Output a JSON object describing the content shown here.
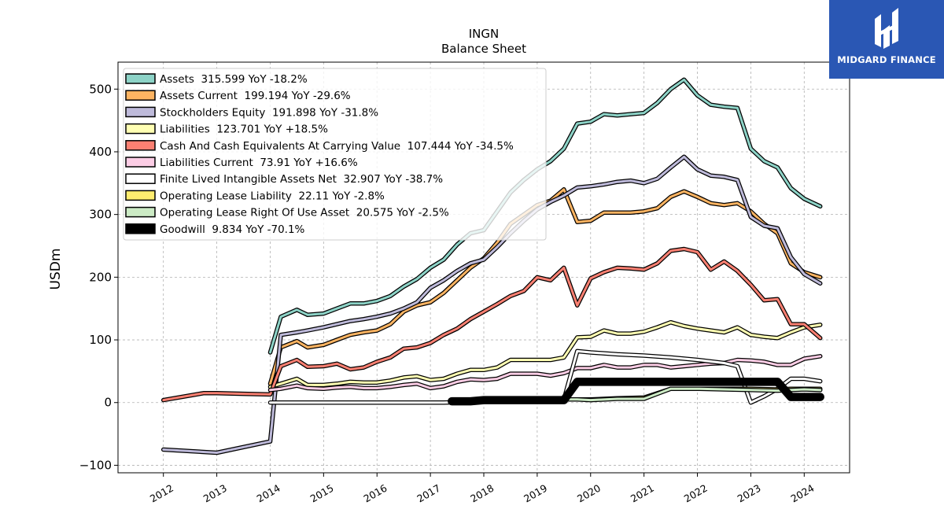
{
  "brand": {
    "name": "MIDGARD FINANCE",
    "color": "#2a57b4"
  },
  "chart_data": {
    "type": "line",
    "title": "INGN",
    "subtitle": "Balance  Sheet",
    "ylabel": "USDm",
    "xlabel": "",
    "ylim": [
      -112,
      543
    ],
    "xlim": [
      2011.15,
      2024.85
    ],
    "yticks": [
      -100,
      0,
      100,
      200,
      300,
      400,
      500
    ],
    "xticks": [
      2012,
      2013,
      2014,
      2015,
      2016,
      2017,
      2018,
      2019,
      2020,
      2021,
      2022,
      2023,
      2024
    ],
    "grid": true,
    "legend_position": "top-left",
    "series": [
      {
        "name": "Assets",
        "legend": "Assets  315.599 YoY -18.2%",
        "color": "#8dd3c7",
        "width": 3,
        "x": [
          2014.0,
          2014.2,
          2014.5,
          2014.7,
          2015.0,
          2015.25,
          2015.5,
          2015.75,
          2016.0,
          2016.25,
          2016.5,
          2016.75,
          2017.0,
          2017.25,
          2017.5,
          2017.75,
          2018.0,
          2018.25,
          2018.5,
          2018.75,
          2019.0,
          2019.25,
          2019.5,
          2019.75,
          2020.0,
          2020.25,
          2020.5,
          2020.75,
          2021.0,
          2021.25,
          2021.5,
          2021.75,
          2022.0,
          2022.25,
          2022.5,
          2022.75,
          2023.0,
          2023.25,
          2023.5,
          2023.75,
          2024.0,
          2024.3
        ],
        "y": [
          80,
          137,
          148,
          140,
          142,
          150,
          158,
          158,
          162,
          170,
          185,
          197,
          215,
          228,
          252,
          270,
          275,
          305,
          335,
          355,
          372,
          385,
          405,
          445,
          448,
          460,
          458,
          460,
          462,
          478,
          500,
          515,
          490,
          475,
          472,
          470,
          405,
          385,
          375,
          342,
          325,
          313
        ]
      },
      {
        "name": "Assets Current",
        "legend": "Assets Current  199.194 YoY -29.6%",
        "color": "#fdb462",
        "width": 3,
        "x": [
          2014.0,
          2014.2,
          2014.5,
          2014.7,
          2015.0,
          2015.25,
          2015.5,
          2015.75,
          2016.0,
          2016.25,
          2016.5,
          2016.75,
          2017.0,
          2017.25,
          2017.5,
          2017.75,
          2018.0,
          2018.25,
          2018.5,
          2018.75,
          2019.0,
          2019.25,
          2019.5,
          2019.75,
          2020.0,
          2020.25,
          2020.5,
          2020.75,
          2021.0,
          2021.25,
          2021.5,
          2021.75,
          2022.0,
          2022.25,
          2022.5,
          2022.75,
          2023.0,
          2023.25,
          2023.5,
          2023.75,
          2024.0,
          2024.3
        ],
        "y": [
          30,
          88,
          98,
          88,
          92,
          100,
          108,
          112,
          115,
          125,
          145,
          155,
          160,
          175,
          195,
          215,
          230,
          255,
          285,
          300,
          315,
          322,
          340,
          288,
          290,
          303,
          303,
          303,
          305,
          310,
          328,
          337,
          328,
          318,
          315,
          318,
          305,
          285,
          270,
          222,
          208,
          200
        ]
      },
      {
        "name": "Stockholders Equity",
        "legend": "Stockholders Equity  191.898 YoY -31.8%",
        "color": "#bebada",
        "width": 3,
        "x": [
          2012.0,
          2013.0,
          2014.0,
          2014.2,
          2014.5,
          2014.7,
          2015.0,
          2015.25,
          2015.5,
          2015.75,
          2016.0,
          2016.25,
          2016.5,
          2016.75,
          2017.0,
          2017.25,
          2017.5,
          2017.75,
          2018.0,
          2018.25,
          2018.5,
          2018.75,
          2019.0,
          2019.25,
          2019.5,
          2019.75,
          2020.0,
          2020.25,
          2020.5,
          2020.75,
          2021.0,
          2021.25,
          2021.5,
          2021.75,
          2022.0,
          2022.25,
          2022.5,
          2022.75,
          2023.0,
          2023.25,
          2023.5,
          2023.75,
          2024.0,
          2024.3
        ],
        "y": [
          -75,
          -80,
          -62,
          108,
          112,
          115,
          120,
          125,
          130,
          133,
          137,
          142,
          150,
          160,
          183,
          195,
          210,
          222,
          228,
          248,
          270,
          290,
          308,
          320,
          330,
          343,
          345,
          348,
          352,
          354,
          350,
          357,
          375,
          392,
          372,
          362,
          360,
          355,
          296,
          282,
          278,
          232,
          205,
          190
        ]
      },
      {
        "name": "Liabilities",
        "legend": "Liabilities  123.701 YoY +18.5%",
        "color": "#ffffb3",
        "width": 3,
        "x": [
          2014.0,
          2014.2,
          2014.5,
          2014.7,
          2015.0,
          2015.25,
          2015.5,
          2015.75,
          2016.0,
          2016.25,
          2016.5,
          2016.75,
          2017.0,
          2017.25,
          2017.5,
          2017.75,
          2018.0,
          2018.25,
          2018.5,
          2018.75,
          2019.0,
          2019.25,
          2019.5,
          2019.75,
          2020.0,
          2020.25,
          2020.5,
          2020.75,
          2021.0,
          2021.25,
          2021.5,
          2021.75,
          2022.0,
          2022.25,
          2022.5,
          2022.75,
          2023.0,
          2023.25,
          2023.5,
          2023.75,
          2024.0,
          2024.3
        ],
        "y": [
          25,
          30,
          38,
          28,
          28,
          30,
          33,
          32,
          32,
          35,
          40,
          42,
          36,
          38,
          46,
          52,
          52,
          56,
          68,
          68,
          68,
          68,
          72,
          104,
          105,
          115,
          110,
          110,
          113,
          120,
          128,
          122,
          118,
          115,
          112,
          120,
          108,
          105,
          103,
          112,
          120,
          124
        ]
      },
      {
        "name": "Cash And Cash Equivalents At Carrying Value",
        "legend": "Cash And Cash Equivalents At Carrying Value  107.444 YoY -34.5%",
        "color": "#fb8072",
        "width": 3,
        "x": [
          2012.0,
          2012.75,
          2013.0,
          2013.5,
          2014.0,
          2014.2,
          2014.5,
          2014.7,
          2015.0,
          2015.25,
          2015.5,
          2015.75,
          2016.0,
          2016.25,
          2016.5,
          2016.75,
          2017.0,
          2017.25,
          2017.5,
          2017.75,
          2018.0,
          2018.25,
          2018.5,
          2018.75,
          2019.0,
          2019.25,
          2019.5,
          2019.75,
          2020.0,
          2020.25,
          2020.5,
          2020.75,
          2021.0,
          2021.25,
          2021.5,
          2021.75,
          2022.0,
          2022.25,
          2022.5,
          2022.75,
          2023.0,
          2023.25,
          2023.5,
          2023.75,
          2024.0,
          2024.3
        ],
        "y": [
          4,
          15,
          15,
          14,
          13,
          58,
          68,
          57,
          58,
          62,
          53,
          56,
          65,
          72,
          86,
          88,
          95,
          108,
          118,
          133,
          145,
          157,
          170,
          178,
          200,
          195,
          215,
          155,
          198,
          208,
          215,
          214,
          212,
          222,
          242,
          245,
          240,
          212,
          225,
          210,
          188,
          163,
          165,
          125,
          125,
          103
        ]
      },
      {
        "name": "Liabilities Current",
        "legend": "Liabilities Current  73.91 YoY +16.6%",
        "color": "#fccde5",
        "width": 3,
        "x": [
          2014.0,
          2014.2,
          2014.5,
          2014.7,
          2015.0,
          2015.25,
          2015.5,
          2015.75,
          2016.0,
          2016.25,
          2016.5,
          2016.75,
          2017.0,
          2017.25,
          2017.5,
          2017.75,
          2018.0,
          2018.25,
          2018.5,
          2018.75,
          2019.0,
          2019.25,
          2019.5,
          2019.75,
          2020.0,
          2020.25,
          2020.5,
          2020.75,
          2021.0,
          2021.25,
          2021.5,
          2021.75,
          2022.0,
          2022.25,
          2022.5,
          2022.75,
          2023.0,
          2023.25,
          2023.5,
          2023.75,
          2024.0,
          2024.3
        ],
        "y": [
          20,
          22,
          27,
          23,
          22,
          24,
          25,
          23,
          23,
          25,
          28,
          30,
          23,
          26,
          33,
          37,
          36,
          38,
          46,
          46,
          46,
          43,
          47,
          55,
          55,
          60,
          56,
          56,
          60,
          60,
          56,
          58,
          60,
          62,
          63,
          68,
          67,
          65,
          60,
          60,
          70,
          74
        ]
      },
      {
        "name": "Finite Lived Intangible Assets Net",
        "legend": "Finite Lived Intangible Assets Net  32.907 YoY -38.7%",
        "color": "#ffffff",
        "width": 3,
        "x": [
          2014.0,
          2015.0,
          2016.0,
          2017.0,
          2017.25,
          2019.5,
          2019.75,
          2020.0,
          2020.5,
          2021.0,
          2021.5,
          2022.0,
          2022.5,
          2022.75,
          2023.0,
          2023.25,
          2023.5,
          2023.75,
          2024.0,
          2024.3
        ],
        "y": [
          0,
          0,
          0,
          0,
          0,
          5,
          82,
          80,
          77,
          75,
          72,
          68,
          63,
          58,
          0,
          10,
          22,
          38,
          38,
          34
        ]
      },
      {
        "name": "Operating Lease Liability",
        "legend": "Operating Lease Liability  22.11 YoY -2.8%",
        "color": "#ffed6f",
        "width": 3,
        "x": [
          2019.5,
          2019.75,
          2020.0,
          2020.5,
          2021.0,
          2021.25,
          2021.5,
          2022.0,
          2022.5,
          2023.0,
          2023.5,
          2023.75,
          2024.0,
          2024.3
        ],
        "y": [
          5,
          5,
          5,
          7,
          8,
          15,
          22,
          22,
          22,
          22,
          21,
          22,
          22,
          22
        ]
      },
      {
        "name": "Operating Lease Right Of Use Asset",
        "legend": "Operating Lease Right Of Use Asset  20.575 YoY -2.5%",
        "color": "#ccebc5",
        "width": 3,
        "x": [
          2019.5,
          2019.75,
          2020.0,
          2020.5,
          2021.0,
          2021.25,
          2021.5,
          2022.0,
          2022.5,
          2023.0,
          2023.5,
          2023.75,
          2024.0,
          2024.3
        ],
        "y": [
          5,
          5,
          4,
          6,
          6,
          14,
          22,
          22,
          21,
          20,
          19,
          20,
          21,
          20
        ]
      },
      {
        "name": "Goodwill",
        "legend": "Goodwill  9.834 YoY -70.1%",
        "color": "#000000",
        "width": 8,
        "x": [
          2017.4,
          2017.75,
          2018.0,
          2018.5,
          2019.0,
          2019.5,
          2019.75,
          2020.0,
          2020.5,
          2021.0,
          2021.5,
          2022.0,
          2022.5,
          2023.0,
          2023.5,
          2023.75,
          2024.0,
          2024.3
        ],
        "y": [
          2,
          2,
          4,
          4,
          4,
          4,
          33,
          33,
          33,
          33,
          33,
          33,
          33,
          33,
          33,
          9,
          9,
          9
        ]
      }
    ]
  }
}
